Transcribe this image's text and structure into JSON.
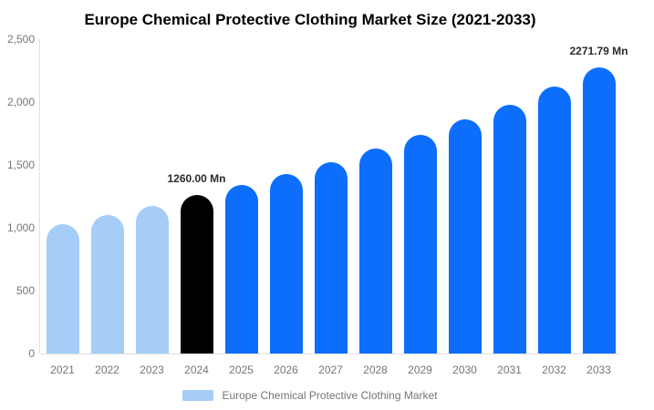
{
  "title": "Europe Chemical Protective Clothing Market Size (2021-2033)",
  "legend": {
    "label": "Europe Chemical Protective Clothing Market"
  },
  "colors": {
    "historical": "#A5CDF7",
    "base_year": "#000000",
    "forecast": "#0D6EFB",
    "axis_line": "#E0E0E0",
    "tick_text": "#757575",
    "value_label_text": "#2B2B2B"
  },
  "chart_data": {
    "type": "bar",
    "title": "Europe Chemical Protective Clothing Market Size (2021-2033)",
    "unit": "Mn",
    "ylim": [
      0,
      2500
    ],
    "grid": "off",
    "legend_position": "bottom",
    "y_tick_labels": [
      "2,500",
      "2,000",
      "1,500",
      "1,000",
      "500",
      "0"
    ],
    "y_tick_values": [
      2500,
      2000,
      1500,
      1000,
      500,
      0
    ],
    "categories": [
      "2021",
      "2022",
      "2023",
      "2024",
      "2025",
      "2026",
      "2027",
      "2028",
      "2029",
      "2030",
      "2031",
      "2032",
      "2033"
    ],
    "series": [
      {
        "name": "Europe Chemical Protective Clothing Market",
        "values": [
          1030,
          1100,
          1175,
          1260.0,
          1340,
          1430,
          1520,
          1630,
          1740,
          1860,
          1980,
          2120,
          2271.79
        ]
      }
    ],
    "point_color_roles": [
      "historical",
      "historical",
      "historical",
      "base_year",
      "forecast",
      "forecast",
      "forecast",
      "forecast",
      "forecast",
      "forecast",
      "forecast",
      "forecast",
      "forecast"
    ],
    "data_labels": [
      {
        "category": "2024",
        "text": "1260.00 Mn"
      },
      {
        "category": "2033",
        "text": "2271.79 Mn"
      }
    ]
  }
}
